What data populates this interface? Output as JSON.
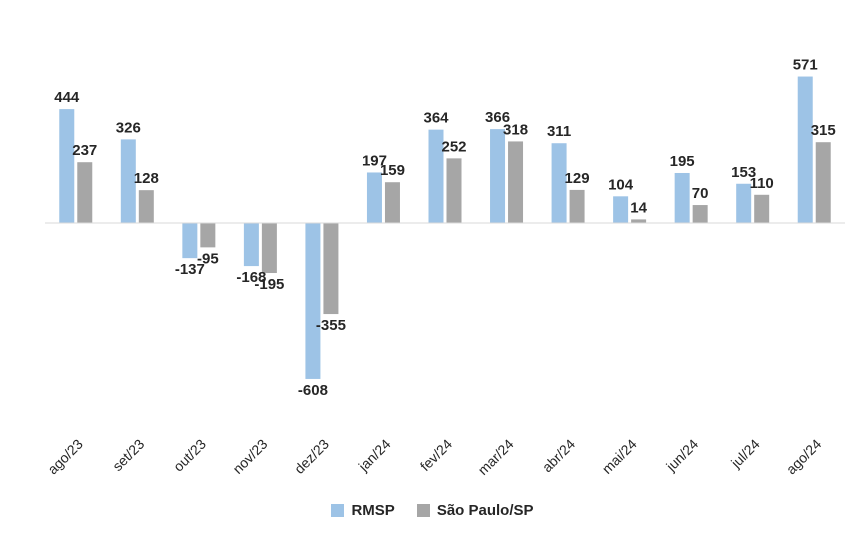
{
  "chart_data": {
    "type": "bar",
    "categories": [
      "ago/23",
      "set/23",
      "out/23",
      "nov/23",
      "dez/23",
      "jan/24",
      "fev/24",
      "mar/24",
      "abr/24",
      "mai/24",
      "jun/24",
      "jul/24",
      "ago/24"
    ],
    "series": [
      {
        "name": "RMSP",
        "color": "#9DC3E6",
        "values": [
          444,
          326,
          -137,
          -168,
          -608,
          197,
          364,
          366,
          311,
          104,
          195,
          153,
          571
        ]
      },
      {
        "name": "São Paulo/SP",
        "color": "#A6A6A6",
        "values": [
          237,
          128,
          -95,
          -195,
          -355,
          159,
          252,
          318,
          129,
          14,
          70,
          110,
          315
        ]
      }
    ],
    "title": "",
    "xlabel": "",
    "ylabel": "",
    "ylim": [
      -608,
      571
    ],
    "grid": false,
    "legend": "bottom",
    "data_labels": true
  }
}
